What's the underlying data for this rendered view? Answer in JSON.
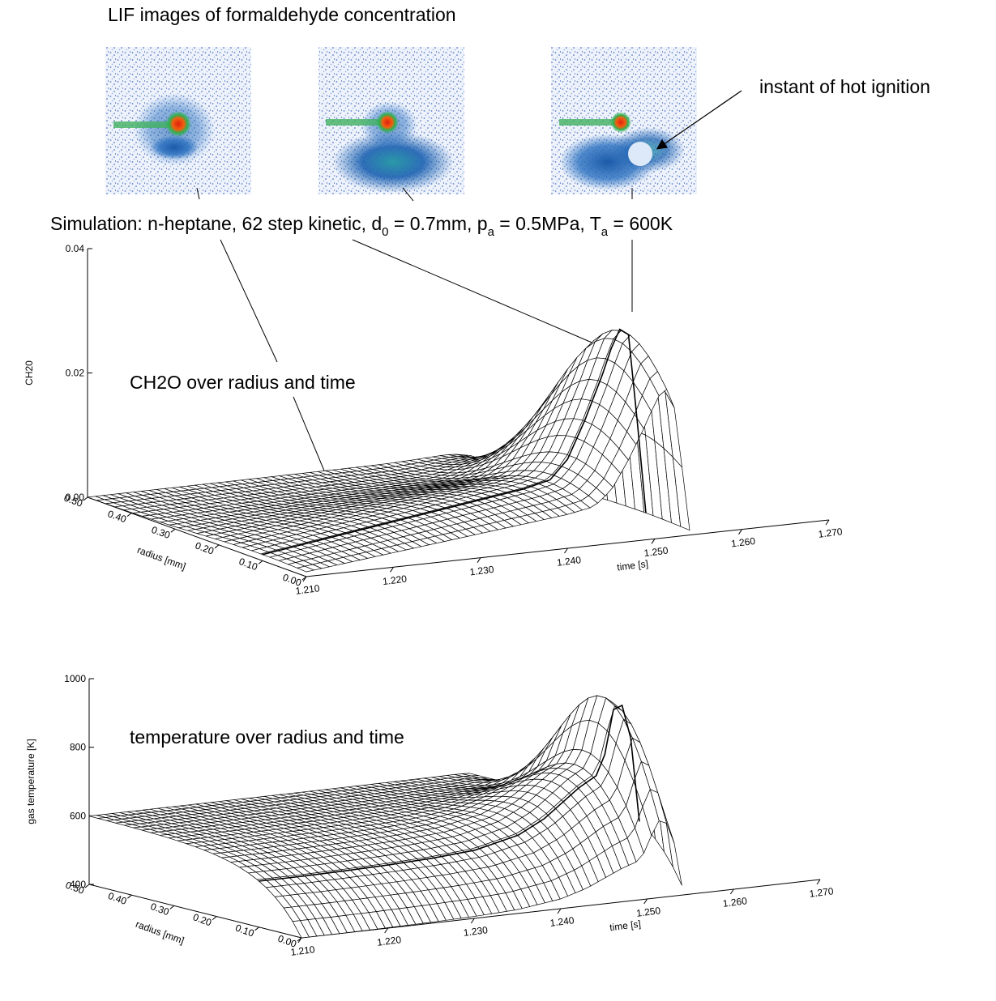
{
  "figure": {
    "title": "LIF images of formaldehyde concentration",
    "ignition_note": "instant of hot ignition",
    "simulation_parts": [
      {
        "text": "Simulation: n-heptane, 62 step kinetic, d",
        "sub": false
      },
      {
        "text": "0",
        "sub": true
      },
      {
        "text": " = 0.7mm, p",
        "sub": false
      },
      {
        "text": "a",
        "sub": true
      },
      {
        "text": " = 0.5MPa, T",
        "sub": false
      },
      {
        "text": "a",
        "sub": true
      },
      {
        "text": " = 600K",
        "sub": false
      }
    ],
    "ch2o_note": "CH2O over radius and time",
    "temp_note": "temperature over radius and time"
  },
  "chart_data": [
    {
      "type": "surface",
      "zlabel": "CH20",
      "xlabel": "time [s]",
      "ylabel": "radius [mm]",
      "xlim": [
        1.21,
        1.27
      ],
      "xticks": [
        {
          "value": 1.21,
          "label": "1.210"
        },
        {
          "value": 1.22,
          "label": "1.220"
        },
        {
          "value": 1.23,
          "label": "1.230"
        },
        {
          "value": 1.24,
          "label": "1.240"
        },
        {
          "value": 1.25,
          "label": "1.250"
        },
        {
          "value": 1.26,
          "label": "1.260"
        },
        {
          "value": 1.27,
          "label": "1.270"
        }
      ],
      "ylim": [
        0,
        0.5
      ],
      "yticks": [
        {
          "value": 0,
          "label": "0.00"
        },
        {
          "value": 0.1,
          "label": "0.10"
        },
        {
          "value": 0.2,
          "label": "0.20"
        },
        {
          "value": 0.3,
          "label": "0.30"
        },
        {
          "value": 0.4,
          "label": "0.40"
        },
        {
          "value": 0.5,
          "label": "0.50"
        }
      ],
      "zlim": [
        0,
        0.04
      ],
      "zticks": [
        {
          "value": 0,
          "label": "0.00"
        },
        0.02,
        0.04
      ],
      "x": [
        1.21,
        1.215,
        1.22,
        1.225,
        1.23,
        1.235,
        1.24,
        1.243,
        1.245,
        1.247,
        1.249,
        1.25,
        1.251,
        1.252,
        1.253,
        1.254
      ],
      "values": [
        0.001,
        0.002,
        0.003,
        0.004,
        0.005,
        0.006,
        0.007,
        0.008,
        0.011,
        0.017,
        0.024,
        0.028,
        0.031,
        0.03,
        0.016,
        0.001
      ],
      "color": "#000000"
    },
    {
      "type": "surface",
      "zlabel": "gas temperature [K]",
      "xlabel": "time [s]",
      "ylabel": "radius [mm]",
      "xlim": [
        1.21,
        1.27
      ],
      "xticks": [
        {
          "value": 1.21,
          "label": "1.210"
        },
        {
          "value": 1.22,
          "label": "1.220"
        },
        {
          "value": 1.23,
          "label": "1.230"
        },
        {
          "value": 1.24,
          "label": "1.240"
        },
        {
          "value": 1.25,
          "label": "1.250"
        },
        {
          "value": 1.26,
          "label": "1.260"
        },
        {
          "value": 1.27,
          "label": "1.270"
        }
      ],
      "ylim": [
        0,
        0.5
      ],
      "yticks": [
        {
          "value": 0,
          "label": "0.00"
        },
        {
          "value": 0.1,
          "label": "0.10"
        },
        {
          "value": 0.2,
          "label": "0.20"
        },
        {
          "value": 0.3,
          "label": "0.30"
        },
        {
          "value": 0.4,
          "label": "0.40"
        },
        {
          "value": 0.5,
          "label": "0.50"
        }
      ],
      "zlim": [
        400,
        1000
      ],
      "zticks": [
        400,
        600,
        800,
        1000
      ],
      "x": [
        1.21,
        1.215,
        1.22,
        1.225,
        1.23,
        1.235,
        1.24,
        1.243,
        1.245,
        1.247,
        1.249,
        1.25,
        1.251,
        1.252,
        1.253,
        1.254
      ],
      "values": [
        600,
        600,
        602,
        605,
        610,
        620,
        650,
        690,
        730,
        770,
        800,
        860,
        990,
        1000,
        900,
        650
      ],
      "color": "#000000"
    }
  ]
}
